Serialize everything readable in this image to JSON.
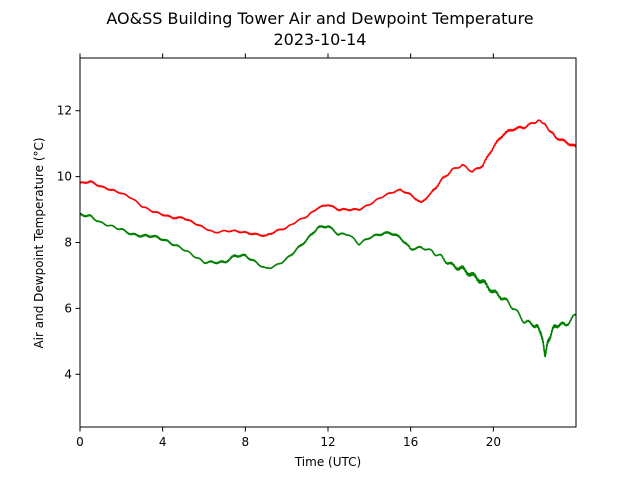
{
  "chart_data": {
    "type": "line",
    "title": "AO&SS Building Tower Air and Dewpoint Temperature",
    "subtitle": "2023-10-14",
    "xlabel": "Time (UTC)",
    "ylabel": "Air and Dewpoint Temperature (°C)",
    "xlim": [
      0,
      24
    ],
    "ylim": [
      2.4,
      13.6
    ],
    "xticks": [
      0,
      4,
      8,
      12,
      16,
      20
    ],
    "yticks": [
      4,
      6,
      8,
      10,
      12
    ],
    "grid": false,
    "legend": "none",
    "series": [
      {
        "color": "#ff0000",
        "points": [
          [
            0.0,
            9.8
          ],
          [
            0.5,
            9.85
          ],
          [
            1.0,
            9.7
          ],
          [
            1.5,
            9.6
          ],
          [
            2.0,
            9.5
          ],
          [
            2.5,
            9.35
          ],
          [
            3.0,
            9.1
          ],
          [
            3.5,
            8.95
          ],
          [
            4.0,
            8.85
          ],
          [
            4.5,
            8.75
          ],
          [
            5.0,
            8.75
          ],
          [
            5.5,
            8.6
          ],
          [
            6.0,
            8.45
          ],
          [
            6.5,
            8.3
          ],
          [
            7.0,
            8.35
          ],
          [
            7.5,
            8.35
          ],
          [
            8.0,
            8.3
          ],
          [
            8.5,
            8.25
          ],
          [
            9.0,
            8.2
          ],
          [
            9.5,
            8.35
          ],
          [
            10.0,
            8.45
          ],
          [
            10.5,
            8.65
          ],
          [
            11.0,
            8.8
          ],
          [
            11.5,
            9.05
          ],
          [
            12.0,
            9.15
          ],
          [
            12.5,
            9.0
          ],
          [
            13.0,
            9.0
          ],
          [
            13.5,
            9.0
          ],
          [
            14.0,
            9.15
          ],
          [
            14.5,
            9.35
          ],
          [
            15.0,
            9.5
          ],
          [
            15.5,
            9.6
          ],
          [
            16.0,
            9.45
          ],
          [
            16.5,
            9.2
          ],
          [
            17.0,
            9.5
          ],
          [
            17.5,
            9.9
          ],
          [
            18.0,
            10.2
          ],
          [
            18.5,
            10.35
          ],
          [
            19.0,
            10.15
          ],
          [
            19.5,
            10.35
          ],
          [
            20.0,
            10.9
          ],
          [
            20.5,
            11.3
          ],
          [
            21.0,
            11.45
          ],
          [
            21.5,
            11.5
          ],
          [
            22.0,
            11.65
          ],
          [
            22.3,
            11.7
          ],
          [
            22.6,
            11.5
          ],
          [
            23.0,
            11.2
          ],
          [
            23.5,
            11.05
          ],
          [
            24.0,
            10.9
          ]
        ]
      },
      {
        "color": "#008000",
        "points": [
          [
            0.0,
            8.85
          ],
          [
            0.5,
            8.8
          ],
          [
            1.0,
            8.6
          ],
          [
            1.5,
            8.5
          ],
          [
            2.0,
            8.4
          ],
          [
            2.5,
            8.25
          ],
          [
            3.0,
            8.2
          ],
          [
            3.5,
            8.2
          ],
          [
            4.0,
            8.1
          ],
          [
            4.5,
            7.95
          ],
          [
            5.0,
            7.8
          ],
          [
            5.5,
            7.6
          ],
          [
            6.0,
            7.4
          ],
          [
            6.5,
            7.4
          ],
          [
            7.0,
            7.4
          ],
          [
            7.5,
            7.6
          ],
          [
            8.0,
            7.6
          ],
          [
            8.5,
            7.4
          ],
          [
            9.0,
            7.2
          ],
          [
            9.5,
            7.3
          ],
          [
            10.0,
            7.5
          ],
          [
            10.5,
            7.8
          ],
          [
            11.0,
            8.1
          ],
          [
            11.5,
            8.45
          ],
          [
            12.0,
            8.5
          ],
          [
            12.5,
            8.25
          ],
          [
            13.0,
            8.25
          ],
          [
            13.5,
            7.95
          ],
          [
            14.0,
            8.15
          ],
          [
            14.5,
            8.25
          ],
          [
            15.0,
            8.3
          ],
          [
            15.5,
            8.15
          ],
          [
            16.0,
            7.8
          ],
          [
            16.5,
            7.85
          ],
          [
            17.0,
            7.75
          ],
          [
            17.5,
            7.55
          ],
          [
            18.0,
            7.3
          ],
          [
            18.5,
            7.2
          ],
          [
            19.0,
            7.0
          ],
          [
            19.5,
            6.8
          ],
          [
            20.0,
            6.5
          ],
          [
            20.5,
            6.3
          ],
          [
            21.0,
            6.0
          ],
          [
            21.5,
            5.6
          ],
          [
            22.0,
            5.5
          ],
          [
            22.3,
            5.3
          ],
          [
            22.5,
            4.6
          ],
          [
            22.7,
            5.1
          ],
          [
            23.0,
            5.5
          ],
          [
            23.5,
            5.5
          ],
          [
            24.0,
            5.8
          ]
        ]
      }
    ]
  }
}
